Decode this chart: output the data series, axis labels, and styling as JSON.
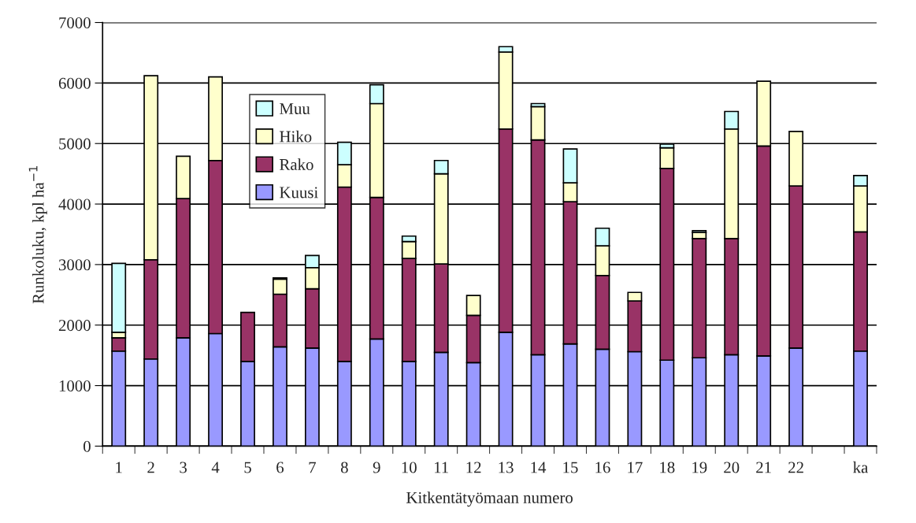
{
  "chart_data": {
    "type": "bar",
    "stacked": true,
    "xlabel": "Kitkentätyömaan numero",
    "ylabel": "Runkoluku, kpl ha$^{−1}$",
    "categories": [
      "1",
      "2",
      "3",
      "4",
      "5",
      "6",
      "7",
      "8",
      "9",
      "10",
      "11",
      "12",
      "13",
      "14",
      "15",
      "16",
      "17",
      "18",
      "19",
      "20",
      "21",
      "22",
      null,
      "ka"
    ],
    "series": [
      {
        "name": "Kuusi",
        "color": "#9999ff",
        "values": [
          1570,
          1440,
          1790,
          1860,
          1400,
          1640,
          1620,
          1400,
          1770,
          1400,
          1550,
          1380,
          1880,
          1510,
          1690,
          1600,
          1560,
          1420,
          1460,
          1510,
          1490,
          1620,
          null,
          1570
        ]
      },
      {
        "name": "Rako",
        "color": "#993366",
        "values": [
          220,
          1640,
          2300,
          2860,
          810,
          870,
          980,
          2880,
          2340,
          1700,
          1460,
          780,
          3360,
          3550,
          2350,
          1220,
          840,
          3170,
          1970,
          1920,
          3470,
          2680,
          null,
          1970
        ]
      },
      {
        "name": "Hiko",
        "color": "#ffffcc",
        "values": [
          90,
          3040,
          700,
          1380,
          null,
          250,
          350,
          370,
          1550,
          280,
          1490,
          330,
          1270,
          550,
          310,
          490,
          140,
          340,
          100,
          1810,
          1070,
          900,
          null,
          760
        ]
      },
      {
        "name": "Muu",
        "color": "#ccffff",
        "values": [
          1140,
          null,
          null,
          null,
          null,
          20,
          200,
          370,
          310,
          90,
          220,
          null,
          90,
          50,
          560,
          290,
          null,
          60,
          30,
          290,
          null,
          null,
          null,
          170
        ]
      }
    ],
    "ylim": [
      0,
      7000
    ],
    "yticks": [
      0,
      1000,
      2000,
      3000,
      4000,
      5000,
      6000,
      7000
    ],
    "grid": "y",
    "legend": "top left"
  }
}
